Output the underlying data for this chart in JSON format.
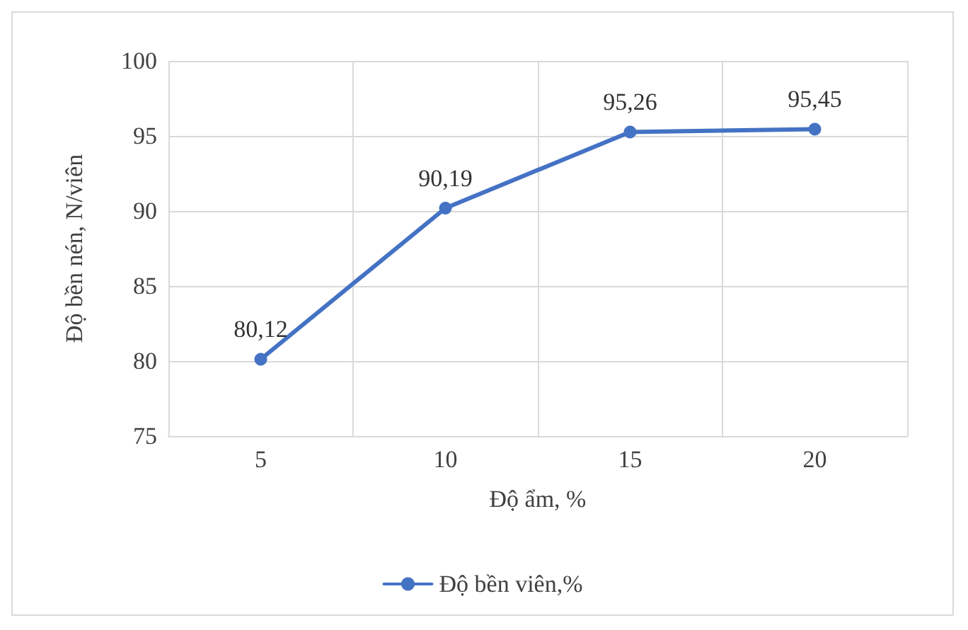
{
  "chart_data": {
    "type": "line",
    "xlabel": "Độ ẩm, %",
    "ylabel": "Độ bền nén, N/viên",
    "categories": [
      "5",
      "10",
      "15",
      "20"
    ],
    "series": [
      {
        "name": "Độ bền viên,%",
        "color": "#4472c4",
        "values": [
          80.12,
          90.19,
          95.26,
          95.45
        ],
        "value_labels": [
          "80,12",
          "90,19",
          "95,26",
          "95,45"
        ]
      }
    ],
    "ylim": [
      75,
      100
    ],
    "yticks": [
      75,
      80,
      85,
      90,
      95,
      100
    ],
    "grid": true,
    "legend": "bottom",
    "marker": "circle",
    "line_style": "solid"
  }
}
